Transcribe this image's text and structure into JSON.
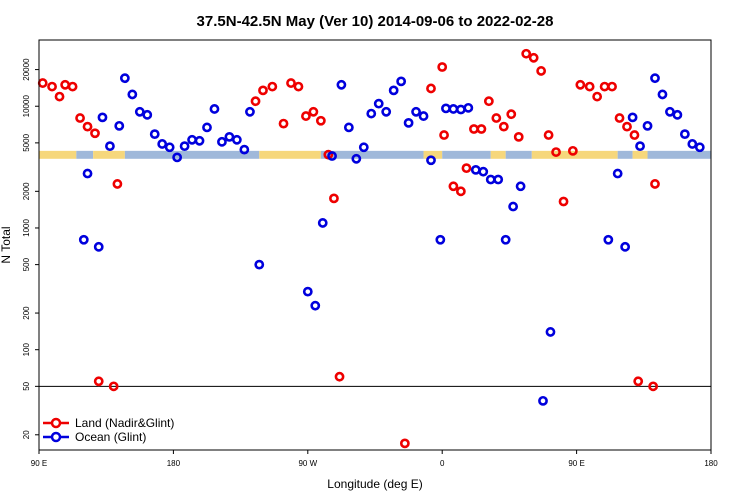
{
  "chart_data": {
    "type": "scatter",
    "title": "37.5N-42.5N May (Ver 10)   2014-09-06 to 2022-02-28",
    "xlabel": "Longitude (deg E)",
    "ylabel": "N Total",
    "xlim": [
      0,
      360
    ],
    "ylim_log": [
      15,
      35000
    ],
    "y_scale": "log",
    "x_ticks": [
      {
        "v": 0,
        "label": "90 E"
      },
      {
        "v": 72,
        "label": "180"
      },
      {
        "v": 144,
        "label": "90 W"
      },
      {
        "v": 216,
        "label": "0"
      },
      {
        "v": 288,
        "label": "90 E"
      },
      {
        "v": 360,
        "label": "180"
      }
    ],
    "y_ticks": [
      20,
      50,
      100,
      200,
      500,
      1000,
      2000,
      5000,
      10000,
      20000
    ],
    "reference_line": 50,
    "legend_position": "bottom-left",
    "colors": {
      "land": "#ee0000",
      "ocean": "#0000dd",
      "map_land": "#f6d77c",
      "map_ocean": "#9fb8da",
      "frame": "#000000"
    },
    "series": [
      {
        "name": "Land (Nadir&Glint)",
        "key": "land",
        "points": [
          [
            2,
            15500
          ],
          [
            7,
            14500
          ],
          [
            11,
            12000
          ],
          [
            14,
            15000
          ],
          [
            18,
            14500
          ],
          [
            22,
            8000
          ],
          [
            26,
            6800
          ],
          [
            30,
            6000
          ],
          [
            32,
            55
          ],
          [
            40,
            50
          ],
          [
            42,
            2300
          ],
          [
            116,
            11000
          ],
          [
            120,
            13500
          ],
          [
            125,
            14500
          ],
          [
            131,
            7200
          ],
          [
            135,
            15500
          ],
          [
            139,
            14500
          ],
          [
            143,
            8300
          ],
          [
            147,
            9000
          ],
          [
            151,
            7600
          ],
          [
            155,
            4000
          ],
          [
            158,
            1750
          ],
          [
            161,
            60
          ],
          [
            196,
            17
          ],
          [
            210,
            14000
          ],
          [
            216,
            21000
          ],
          [
            217,
            5800
          ],
          [
            222,
            2200
          ],
          [
            226,
            2000
          ],
          [
            229,
            3100
          ],
          [
            233,
            6500
          ],
          [
            237,
            6500
          ],
          [
            241,
            11000
          ],
          [
            245,
            8000
          ],
          [
            249,
            6800
          ],
          [
            253,
            8600
          ],
          [
            257,
            5600
          ],
          [
            261,
            27000
          ],
          [
            265,
            25000
          ],
          [
            269,
            19500
          ],
          [
            273,
            5800
          ],
          [
            277,
            4200
          ],
          [
            281,
            1650
          ],
          [
            286,
            4300
          ],
          [
            290,
            15000
          ],
          [
            295,
            14500
          ],
          [
            299,
            12000
          ],
          [
            303,
            14500
          ],
          [
            307,
            14500
          ],
          [
            311,
            8000
          ],
          [
            315,
            6800
          ],
          [
            319,
            5800
          ],
          [
            321,
            55
          ],
          [
            329,
            50
          ],
          [
            330,
            2300
          ]
        ]
      },
      {
        "name": "Ocean (Glint)",
        "key": "ocean",
        "points": [
          [
            24,
            800
          ],
          [
            26,
            2800
          ],
          [
            32,
            700
          ],
          [
            34,
            8100
          ],
          [
            38,
            4700
          ],
          [
            43,
            6900
          ],
          [
            46,
            17000
          ],
          [
            50,
            12500
          ],
          [
            54,
            9000
          ],
          [
            58,
            8500
          ],
          [
            62,
            5900
          ],
          [
            66,
            4900
          ],
          [
            70,
            4600
          ],
          [
            74,
            3800
          ],
          [
            78,
            4700
          ],
          [
            82,
            5300
          ],
          [
            86,
            5200
          ],
          [
            90,
            6700
          ],
          [
            94,
            9500
          ],
          [
            98,
            5100
          ],
          [
            102,
            5600
          ],
          [
            106,
            5300
          ],
          [
            110,
            4400
          ],
          [
            113,
            9000
          ],
          [
            118,
            500
          ],
          [
            144,
            300
          ],
          [
            148,
            230
          ],
          [
            152,
            1100
          ],
          [
            157,
            3900
          ],
          [
            162,
            15000
          ],
          [
            166,
            6700
          ],
          [
            170,
            3700
          ],
          [
            174,
            4600
          ],
          [
            178,
            8700
          ],
          [
            182,
            10500
          ],
          [
            186,
            9000
          ],
          [
            190,
            13500
          ],
          [
            194,
            16000
          ],
          [
            198,
            7300
          ],
          [
            202,
            9000
          ],
          [
            206,
            8300
          ],
          [
            210,
            3600
          ],
          [
            215,
            800
          ],
          [
            218,
            9600
          ],
          [
            222,
            9500
          ],
          [
            226,
            9400
          ],
          [
            230,
            9700
          ],
          [
            234,
            3000
          ],
          [
            238,
            2900
          ],
          [
            242,
            2500
          ],
          [
            246,
            2500
          ],
          [
            250,
            800
          ],
          [
            254,
            1500
          ],
          [
            258,
            2200
          ],
          [
            270,
            38
          ],
          [
            274,
            140
          ],
          [
            305,
            800
          ],
          [
            310,
            2800
          ],
          [
            314,
            700
          ],
          [
            318,
            8100
          ],
          [
            322,
            4700
          ],
          [
            326,
            6900
          ],
          [
            330,
            17000
          ],
          [
            334,
            12500
          ],
          [
            338,
            9000
          ],
          [
            342,
            8500
          ],
          [
            346,
            5900
          ],
          [
            350,
            4900
          ],
          [
            354,
            4600
          ]
        ]
      }
    ],
    "map_segments": [
      {
        "x0": 0,
        "x1": 20,
        "type": "land"
      },
      {
        "x0": 20,
        "x1": 29,
        "type": "ocean"
      },
      {
        "x0": 29,
        "x1": 46,
        "type": "land"
      },
      {
        "x0": 46,
        "x1": 118,
        "type": "ocean"
      },
      {
        "x0": 118,
        "x1": 151,
        "type": "land"
      },
      {
        "x0": 151,
        "x1": 206,
        "type": "ocean"
      },
      {
        "x0": 206,
        "x1": 216,
        "type": "land"
      },
      {
        "x0": 216,
        "x1": 242,
        "type": "ocean"
      },
      {
        "x0": 242,
        "x1": 250,
        "type": "land"
      },
      {
        "x0": 250,
        "x1": 264,
        "type": "ocean"
      },
      {
        "x0": 264,
        "x1": 310,
        "type": "land"
      },
      {
        "x0": 310,
        "x1": 318,
        "type": "ocean"
      },
      {
        "x0": 318,
        "x1": 326,
        "type": "land"
      },
      {
        "x0": 326,
        "x1": 360,
        "type": "ocean"
      }
    ],
    "map_band": [
      3700,
      4300
    ]
  }
}
